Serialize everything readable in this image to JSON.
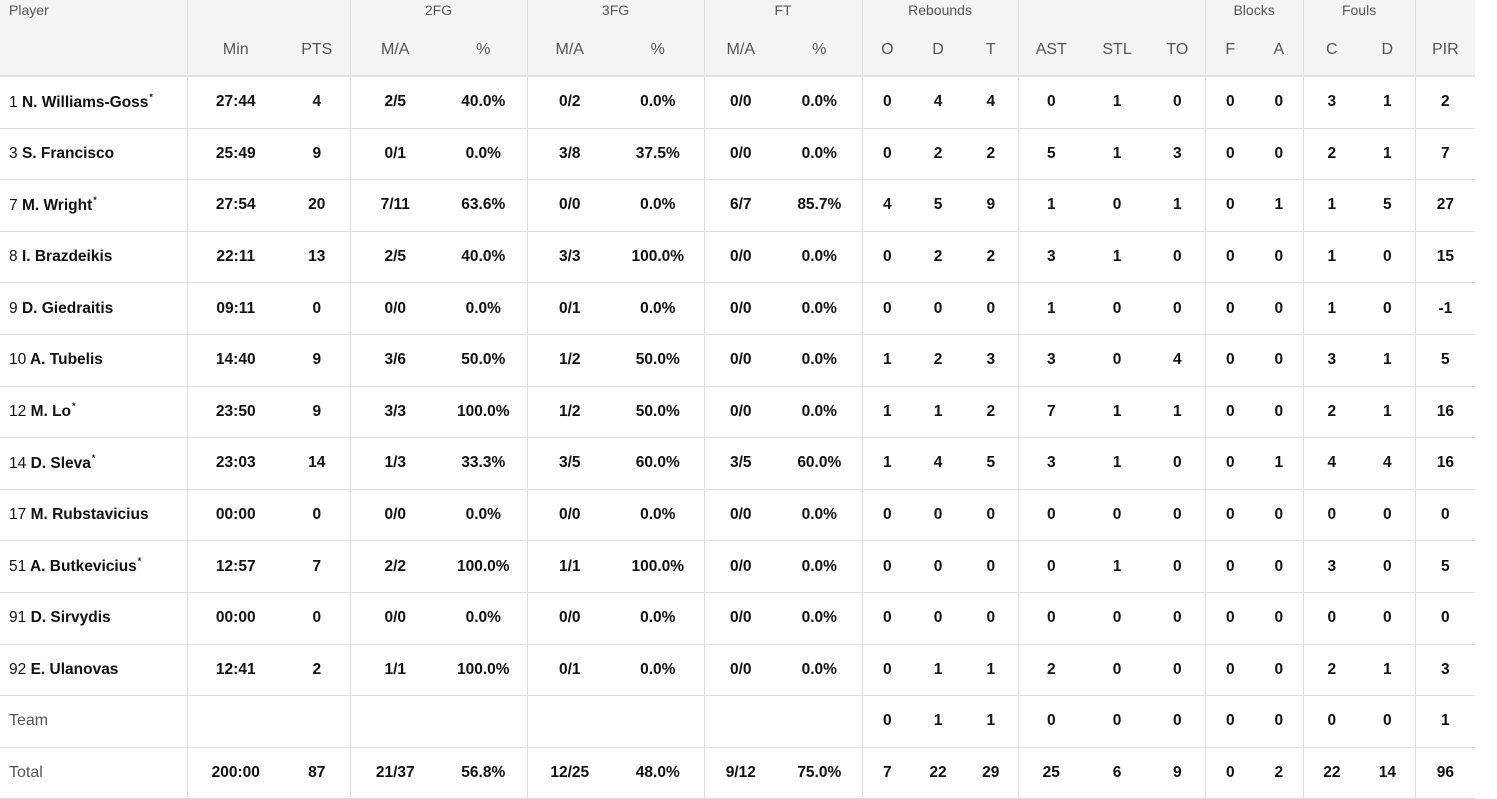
{
  "header": {
    "player": "Player",
    "groups": {
      "fg2": "2FG",
      "fg3": "3FG",
      "ft": "FT",
      "reb": "Rebounds",
      "blk": "Blocks",
      "fouls": "Fouls"
    },
    "columns": [
      "Min",
      "PTS",
      "M/A",
      "%",
      "M/A",
      "%",
      "M/A",
      "%",
      "O",
      "D",
      "T",
      "AST",
      "STL",
      "TO",
      "F",
      "A",
      "C",
      "D",
      "PIR"
    ]
  },
  "starter_marker": "*",
  "rows": [
    {
      "num": "1",
      "name": "N. Williams-Goss",
      "starter": true,
      "stats": [
        "27:44",
        "4",
        "2/5",
        "40.0%",
        "0/2",
        "0.0%",
        "0/0",
        "0.0%",
        "0",
        "4",
        "4",
        "0",
        "1",
        "0",
        "0",
        "0",
        "3",
        "1",
        "2"
      ]
    },
    {
      "num": "3",
      "name": "S. Francisco",
      "starter": false,
      "stats": [
        "25:49",
        "9",
        "0/1",
        "0.0%",
        "3/8",
        "37.5%",
        "0/0",
        "0.0%",
        "0",
        "2",
        "2",
        "5",
        "1",
        "3",
        "0",
        "0",
        "2",
        "1",
        "7"
      ]
    },
    {
      "num": "7",
      "name": "M. Wright",
      "starter": true,
      "stats": [
        "27:54",
        "20",
        "7/11",
        "63.6%",
        "0/0",
        "0.0%",
        "6/7",
        "85.7%",
        "4",
        "5",
        "9",
        "1",
        "0",
        "1",
        "0",
        "1",
        "1",
        "5",
        "27"
      ]
    },
    {
      "num": "8",
      "name": "I. Brazdeikis",
      "starter": false,
      "stats": [
        "22:11",
        "13",
        "2/5",
        "40.0%",
        "3/3",
        "100.0%",
        "0/0",
        "0.0%",
        "0",
        "2",
        "2",
        "3",
        "1",
        "0",
        "0",
        "0",
        "1",
        "0",
        "15"
      ]
    },
    {
      "num": "9",
      "name": "D. Giedraitis",
      "starter": false,
      "stats": [
        "09:11",
        "0",
        "0/0",
        "0.0%",
        "0/1",
        "0.0%",
        "0/0",
        "0.0%",
        "0",
        "0",
        "0",
        "1",
        "0",
        "0",
        "0",
        "0",
        "1",
        "0",
        "-1"
      ]
    },
    {
      "num": "10",
      "name": "A. Tubelis",
      "starter": false,
      "stats": [
        "14:40",
        "9",
        "3/6",
        "50.0%",
        "1/2",
        "50.0%",
        "0/0",
        "0.0%",
        "1",
        "2",
        "3",
        "3",
        "0",
        "4",
        "0",
        "0",
        "3",
        "1",
        "5"
      ]
    },
    {
      "num": "12",
      "name": "M. Lo",
      "starter": true,
      "stats": [
        "23:50",
        "9",
        "3/3",
        "100.0%",
        "1/2",
        "50.0%",
        "0/0",
        "0.0%",
        "1",
        "1",
        "2",
        "7",
        "1",
        "1",
        "0",
        "0",
        "2",
        "1",
        "16"
      ]
    },
    {
      "num": "14",
      "name": "D. Sleva",
      "starter": true,
      "stats": [
        "23:03",
        "14",
        "1/3",
        "33.3%",
        "3/5",
        "60.0%",
        "3/5",
        "60.0%",
        "1",
        "4",
        "5",
        "3",
        "1",
        "0",
        "0",
        "1",
        "4",
        "4",
        "16"
      ]
    },
    {
      "num": "17",
      "name": "M. Rubstavicius",
      "starter": false,
      "stats": [
        "00:00",
        "0",
        "0/0",
        "0.0%",
        "0/0",
        "0.0%",
        "0/0",
        "0.0%",
        "0",
        "0",
        "0",
        "0",
        "0",
        "0",
        "0",
        "0",
        "0",
        "0",
        "0"
      ]
    },
    {
      "num": "51",
      "name": "A. Butkevicius",
      "starter": true,
      "stats": [
        "12:57",
        "7",
        "2/2",
        "100.0%",
        "1/1",
        "100.0%",
        "0/0",
        "0.0%",
        "0",
        "0",
        "0",
        "0",
        "1",
        "0",
        "0",
        "0",
        "3",
        "0",
        "5"
      ]
    },
    {
      "num": "91",
      "name": "D. Sirvydis",
      "starter": false,
      "stats": [
        "00:00",
        "0",
        "0/0",
        "0.0%",
        "0/0",
        "0.0%",
        "0/0",
        "0.0%",
        "0",
        "0",
        "0",
        "0",
        "0",
        "0",
        "0",
        "0",
        "0",
        "0",
        "0"
      ]
    },
    {
      "num": "92",
      "name": "E. Ulanovas",
      "starter": false,
      "stats": [
        "12:41",
        "2",
        "1/1",
        "100.0%",
        "0/1",
        "0.0%",
        "0/0",
        "0.0%",
        "0",
        "1",
        "1",
        "2",
        "0",
        "0",
        "0",
        "0",
        "2",
        "1",
        "3"
      ]
    }
  ],
  "team": {
    "label": "Team",
    "stats": [
      "",
      "",
      "",
      "",
      "",
      "",
      "",
      "",
      "0",
      "1",
      "1",
      "0",
      "0",
      "0",
      "0",
      "0",
      "0",
      "0",
      "1"
    ]
  },
  "total": {
    "label": "Total",
    "stats": [
      "200:00",
      "87",
      "21/37",
      "56.8%",
      "12/25",
      "48.0%",
      "9/12",
      "75.0%",
      "7",
      "22",
      "29",
      "25",
      "6",
      "9",
      "0",
      "2",
      "22",
      "14",
      "96"
    ]
  }
}
